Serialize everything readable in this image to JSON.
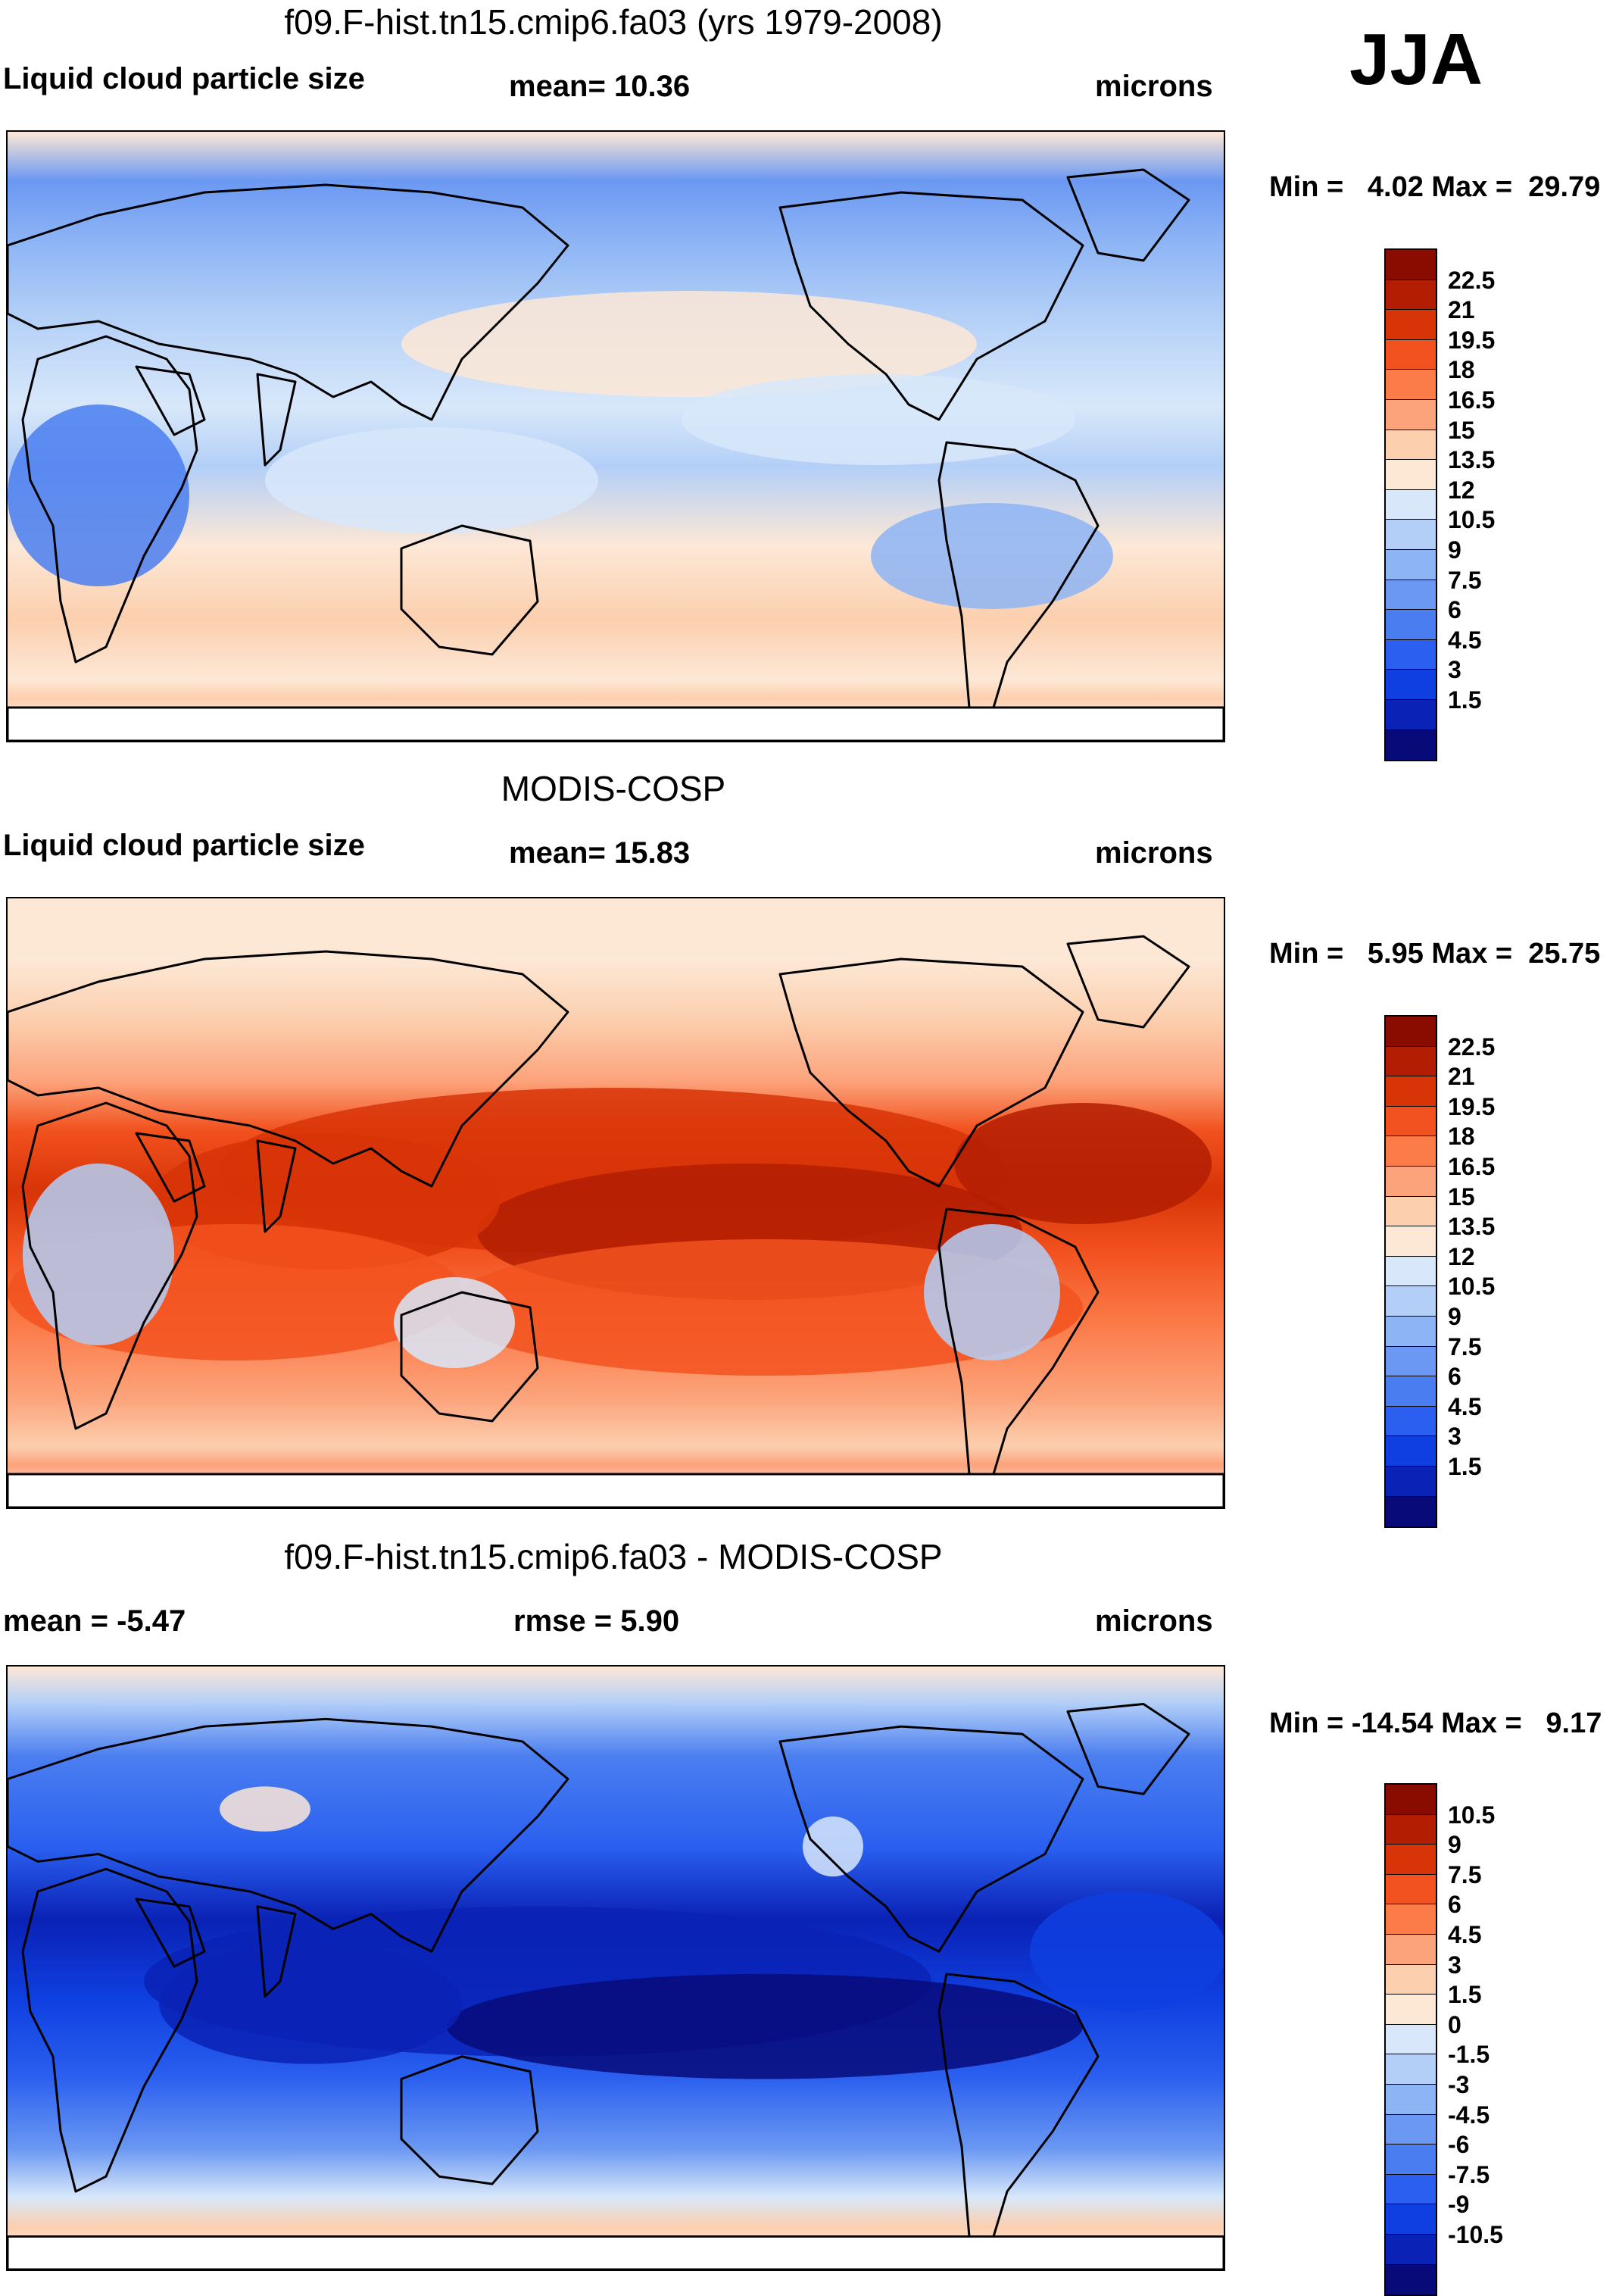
{
  "figure": {
    "season": "JJA"
  },
  "colors": {
    "cb_pos": [
      "#080a7a",
      "#0a22b5",
      "#0f3fe0",
      "#2a5fef",
      "#4a7ef0",
      "#6b98f2",
      "#8db4f5",
      "#b3cff7",
      "#d8e8fa",
      "#fde8d6",
      "#fccfae",
      "#fca37b",
      "#fb7b49",
      "#f2521f",
      "#d73407",
      "#b31d02",
      "#8a0b00"
    ],
    "cb_diff": [
      "#080a7a",
      "#0a22b5",
      "#0f3fe0",
      "#2a5fef",
      "#4a7ef0",
      "#6b98f2",
      "#8db4f5",
      "#b3cff7",
      "#d8e8fa",
      "#fde8d6",
      "#fccfae",
      "#fca37b",
      "#fb7b49",
      "#f2521f",
      "#d73407",
      "#b31d02",
      "#8a0b00"
    ]
  },
  "chart_data": [
    {
      "type": "heatmap",
      "title": "f09.F-hist.tn15.cmip6.fa03 (yrs 1979-2008)",
      "left_label": "Liquid cloud particle size",
      "center_label": "mean=  10.36",
      "right_label": "microns",
      "min_label": "Min =",
      "min_value": "4.02",
      "max_label": "Max =",
      "max_value": "29.79",
      "colorbar_ticks": [
        "22.5",
        "21",
        "19.5",
        "18",
        "16.5",
        "15",
        "13.5",
        "12",
        "10.5",
        "9",
        "7.5",
        "6",
        "4.5",
        "3",
        "1.5"
      ],
      "field_mean": 10.36
    },
    {
      "type": "heatmap",
      "title": "MODIS-COSP",
      "left_label": "Liquid cloud particle size",
      "center_label": "mean=  15.83",
      "right_label": "microns",
      "min_label": "Min =",
      "min_value": "5.95",
      "max_label": "Max =",
      "max_value": "25.75",
      "colorbar_ticks": [
        "22.5",
        "21",
        "19.5",
        "18",
        "16.5",
        "15",
        "13.5",
        "12",
        "10.5",
        "9",
        "7.5",
        "6",
        "4.5",
        "3",
        "1.5"
      ],
      "field_mean": 15.83
    },
    {
      "type": "heatmap",
      "title": "f09.F-hist.tn15.cmip6.fa03 - MODIS-COSP",
      "left_label": "mean =  -5.47",
      "center_label": "rmse =    5.90",
      "right_label": "microns",
      "min_label": "Min =",
      "min_value": "-14.54",
      "max_label": "Max =",
      "max_value": "9.17",
      "colorbar_ticks": [
        "10.5",
        "9",
        "7.5",
        "6",
        "4.5",
        "3",
        "1.5",
        "0",
        "-1.5",
        "-3",
        "-4.5",
        "-6",
        "-7.5",
        "-9",
        "-10.5"
      ],
      "field_mean": -5.47
    }
  ]
}
